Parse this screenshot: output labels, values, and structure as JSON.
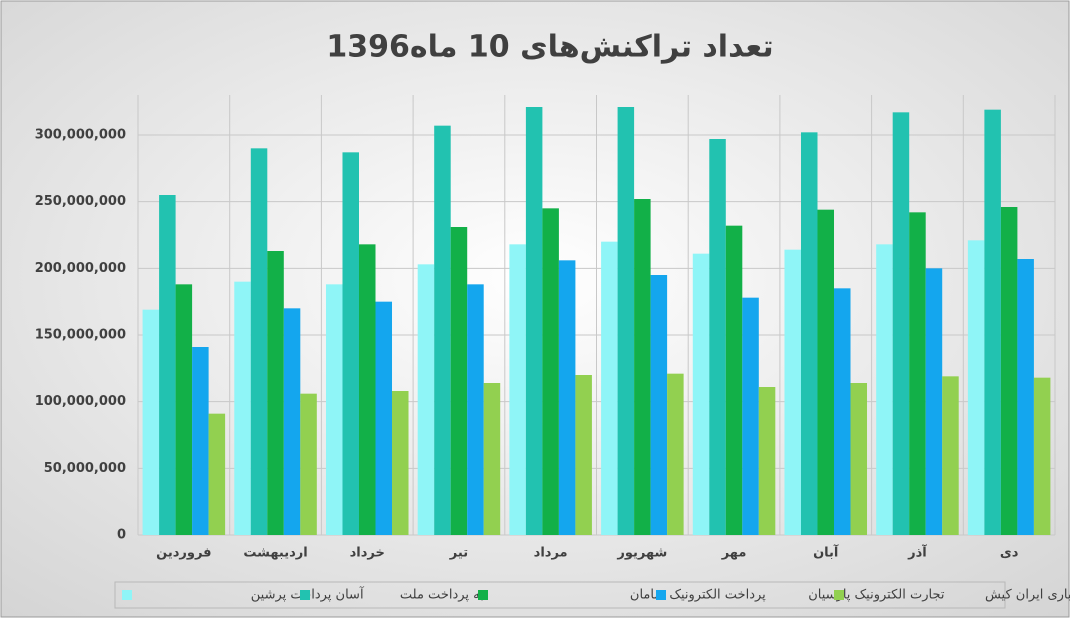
{
  "chart_data": {
    "type": "bar",
    "title": "تعداد تراکنش‌های 10 ماه1396",
    "categories": [
      "فروردین",
      "اردیبهشت",
      "خرداد",
      "تیر",
      "مرداد",
      "شهریور",
      "مهر",
      "آبان",
      "آذر",
      "دی"
    ],
    "series": [
      {
        "name": "آسان پرداخت پرشین",
        "color": "#8ff5f7",
        "values": [
          169000000,
          190000000,
          188000000,
          203000000,
          218000000,
          220000000,
          211000000,
          214000000,
          218000000,
          221000000
        ]
      },
      {
        "name": "به پرداخت ملت",
        "color": "#22c2b0",
        "values": [
          255000000,
          290000000,
          287000000,
          307000000,
          321000000,
          321000000,
          297000000,
          302000000,
          317000000,
          319000000
        ]
      },
      {
        "name": "پرداخت الکترونیک سامان",
        "color": "#12b048",
        "values": [
          188000000,
          213000000,
          218000000,
          231000000,
          245000000,
          252000000,
          232000000,
          244000000,
          242000000,
          246000000
        ]
      },
      {
        "name": "تجارت الکترونیک پارسیان",
        "color": "#14a6ee",
        "values": [
          141000000,
          170000000,
          175000000,
          188000000,
          206000000,
          195000000,
          178000000,
          185000000,
          200000000,
          207000000
        ]
      },
      {
        "name": "کارت اعتباری ایران کیش",
        "color": "#92d050",
        "values": [
          91000000,
          106000000,
          108000000,
          114000000,
          120000000,
          121000000,
          111000000,
          114000000,
          119000000,
          118000000
        ]
      }
    ],
    "ylim": [
      0,
      330000000
    ],
    "yticks": [
      0,
      {
        "value": 50000000,
        "label": "50,000,000"
      },
      {
        "value": 100000000,
        "label": "100,000,000"
      },
      {
        "value": 150000000,
        "label": "150,000,000"
      },
      {
        "value": 200000000,
        "label": "200,000,000"
      },
      {
        "value": 250000000,
        "label": "250,000,000"
      },
      {
        "value": 300000000,
        "label": "300,000,000"
      }
    ],
    "grid": true,
    "legend": "bottom"
  }
}
